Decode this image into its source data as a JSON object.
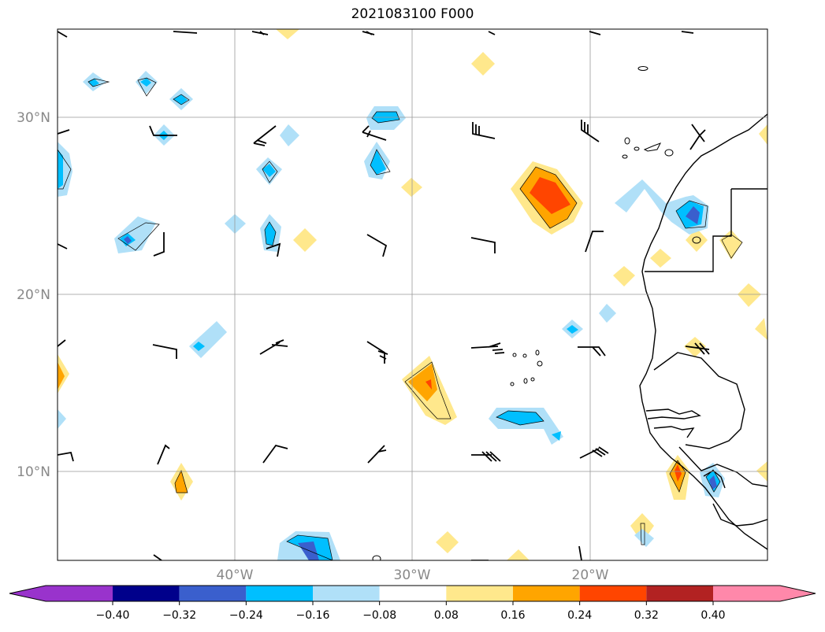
{
  "title": "2021083100 F000",
  "map": {
    "lon_range": [
      -50,
      -10
    ],
    "lat_range": [
      5,
      35
    ],
    "gridlines": true,
    "lat_ticks": [
      {
        "lat": 30,
        "label": "30°N"
      },
      {
        "lat": 20,
        "label": "20°N"
      },
      {
        "lat": 10,
        "label": "10°N"
      }
    ],
    "lon_ticks": [
      {
        "lon": -40,
        "label": "40°W"
      },
      {
        "lon": -30,
        "label": "30°W"
      },
      {
        "lon": -20,
        "label": "20°W"
      }
    ]
  },
  "colorbar": {
    "extend": "both",
    "colors": [
      "#9933cc",
      "#00008b",
      "#3a5fcd",
      "#00bfff",
      "#b0e0f8",
      "#ffffff",
      "#ffe88c",
      "#ffa500",
      "#ff4500",
      "#b22222",
      "#ff88aa"
    ],
    "labels": [
      "−0.40",
      "−0.32",
      "−0.24",
      "−0.16",
      "−0.08",
      "0.08",
      "0.16",
      "0.24",
      "0.32",
      "0.40"
    ]
  }
}
